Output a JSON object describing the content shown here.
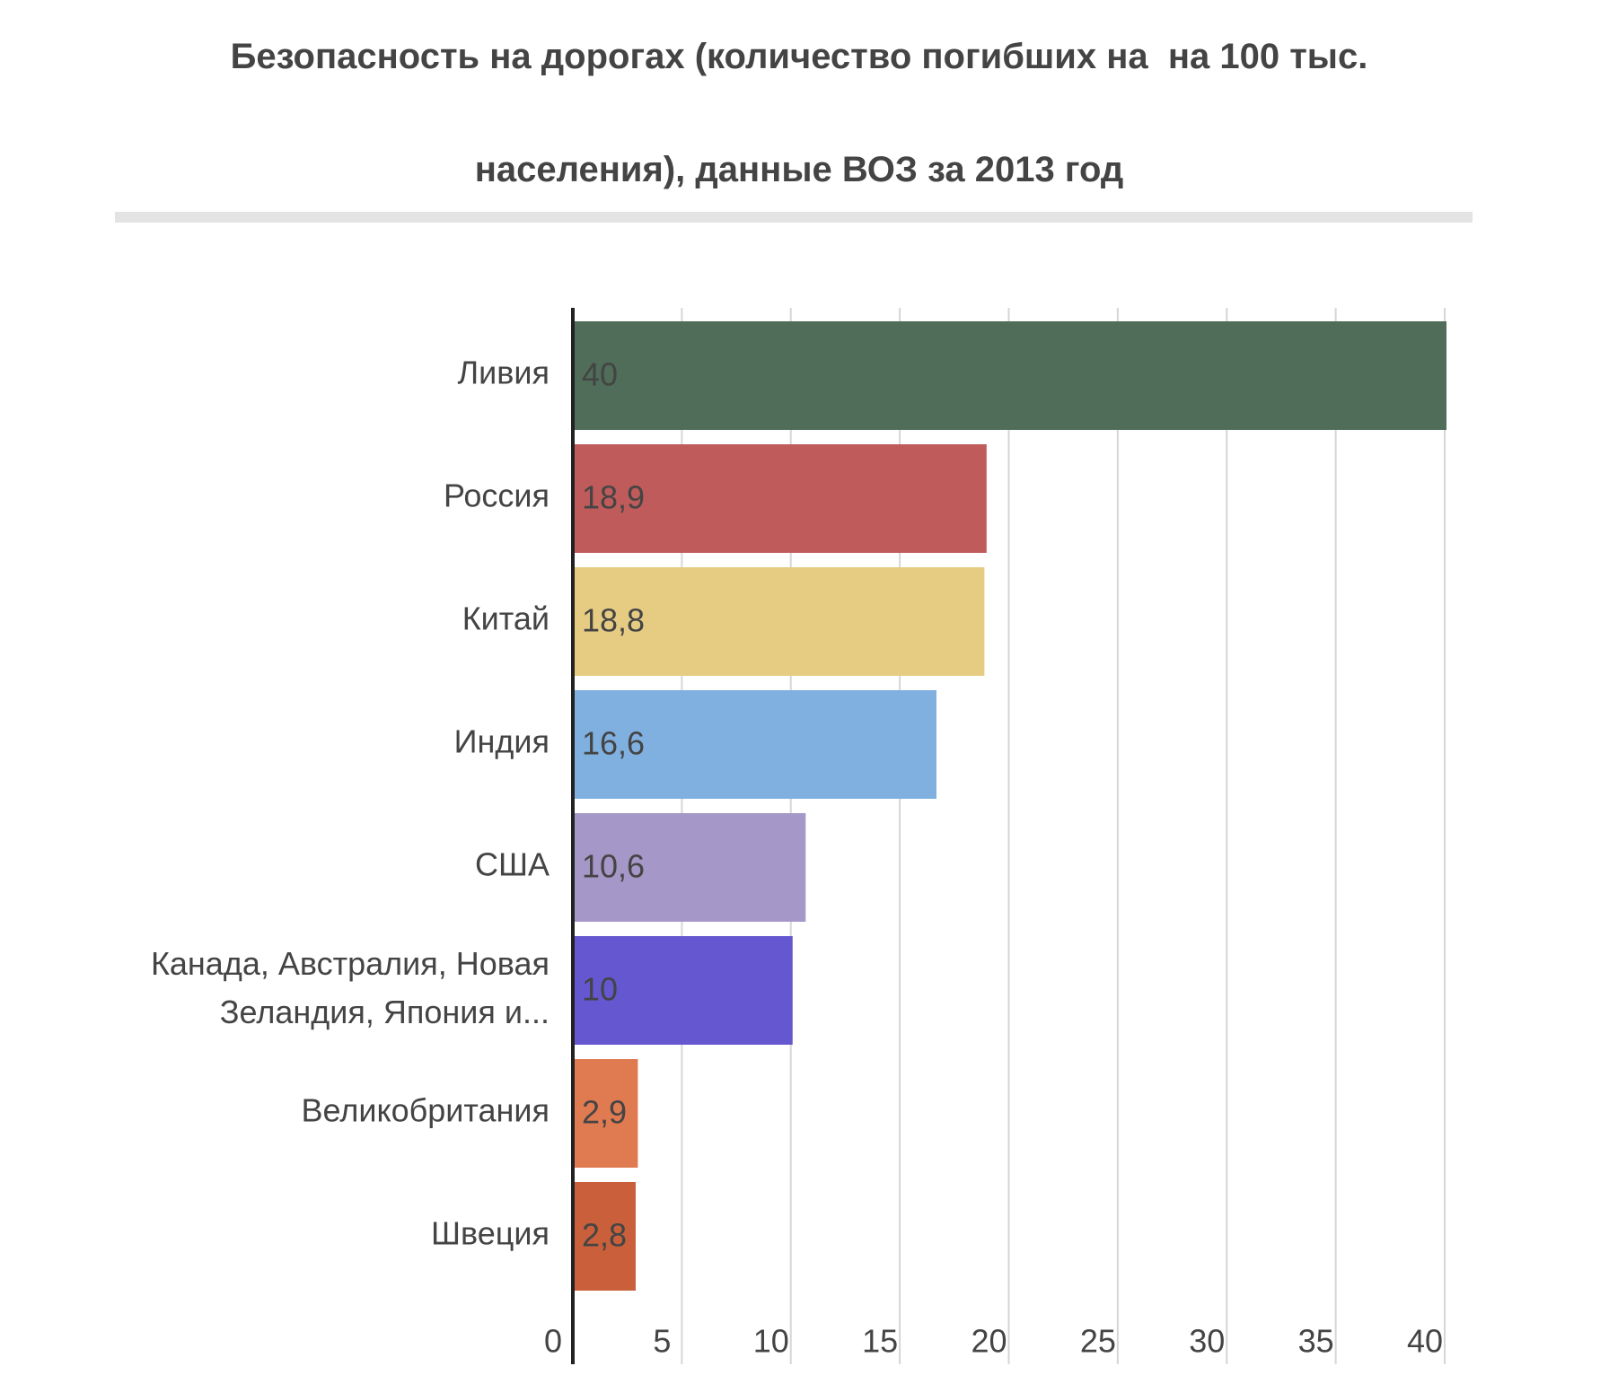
{
  "chart_data": {
    "type": "barh",
    "title": "Безопасность на дорогах (количество погибших на  на 100 тыс. населения), данные ВОЗ за 2013 год",
    "categories": [
      "Ливия",
      "Россия",
      "Китай",
      "Индия",
      "США",
      "Канада, Австралия, Новая Зеландия, Япония и...",
      "Великобритания",
      "Швеция"
    ],
    "values": [
      40,
      18.9,
      18.8,
      16.6,
      10.6,
      10,
      2.9,
      2.8
    ],
    "value_labels": [
      "40",
      "18,9",
      "18,8",
      "16,6",
      "10,6",
      "10",
      "2,9",
      "2,8"
    ],
    "colors": [
      "#4f6d58",
      "#c05b5b",
      "#e6cc82",
      "#7fb0e0",
      "#a597c7",
      "#6457d0",
      "#e07a50",
      "#c9603b"
    ],
    "xlim": [
      0,
      40
    ],
    "xticks": [
      0,
      5,
      10,
      15,
      20,
      25,
      30,
      35,
      40
    ],
    "grid": true
  }
}
